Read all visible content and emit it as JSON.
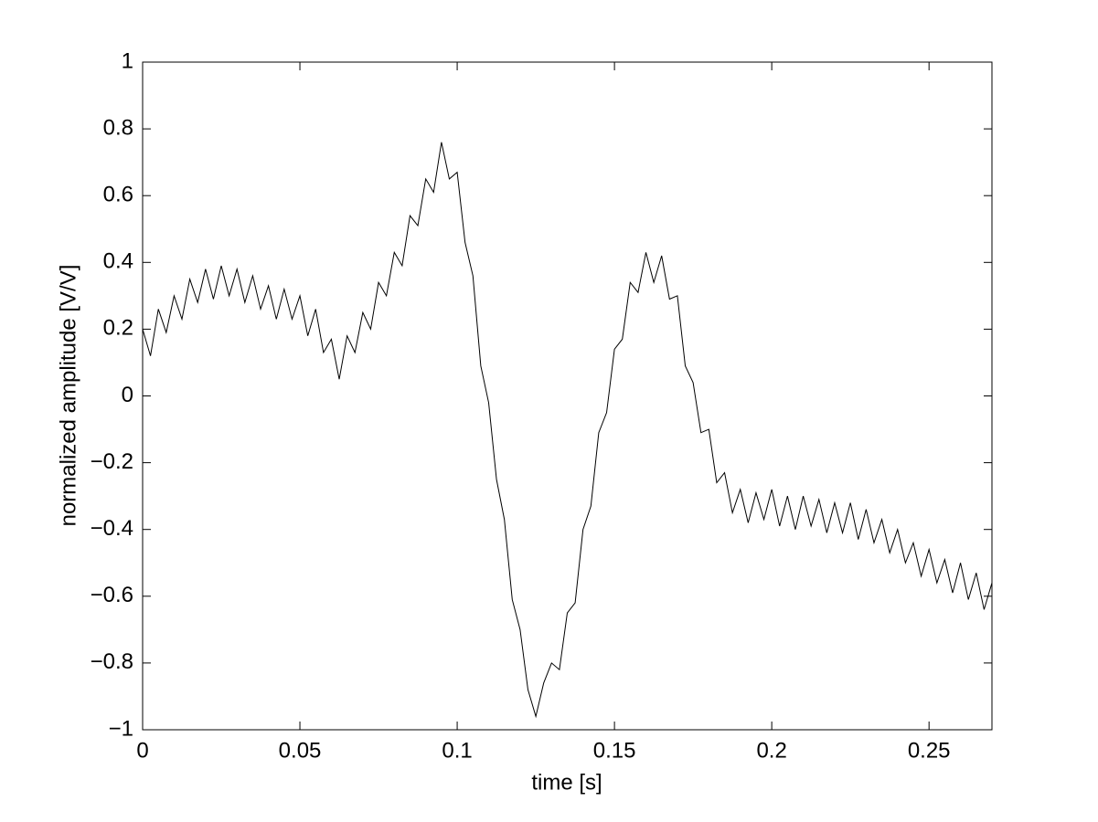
{
  "chart_data": {
    "type": "line",
    "xlabel": "time [s]",
    "ylabel": "normalized amplitude [V/V]",
    "xlim": [
      0,
      0.27
    ],
    "ylim": [
      -1,
      1
    ],
    "xticks": [
      0,
      0.05,
      0.1,
      0.15,
      0.2,
      0.25
    ],
    "yticks": [
      {
        "value": -1,
        "label": "−1"
      },
      {
        "value": -0.8,
        "label": "−0.8"
      },
      {
        "value": -0.6,
        "label": "−0.6"
      },
      {
        "value": -0.4,
        "label": "−0.4"
      },
      {
        "value": -0.2,
        "label": "−0.2"
      },
      0,
      0.2,
      0.4,
      0.6,
      0.8,
      1
    ],
    "grid": false,
    "series": [
      {
        "color": "#000000",
        "x": [
          0,
          0.0025,
          0.005,
          0.0075,
          0.01,
          0.0125,
          0.015,
          0.0175,
          0.02,
          0.0225,
          0.025,
          0.0275,
          0.03,
          0.0325,
          0.035,
          0.0375,
          0.04,
          0.0425,
          0.045,
          0.0475,
          0.05,
          0.0525,
          0.055,
          0.0575,
          0.06,
          0.0625,
          0.065,
          0.0675,
          0.07,
          0.0725,
          0.075,
          0.0775,
          0.08,
          0.0825,
          0.085,
          0.0875,
          0.09,
          0.0925,
          0.095,
          0.0975,
          0.1,
          0.1025,
          0.105,
          0.1075,
          0.11,
          0.1125,
          0.115,
          0.1175,
          0.12,
          0.1225,
          0.125,
          0.1275,
          0.13,
          0.1325,
          0.135,
          0.1375,
          0.14,
          0.1425,
          0.145,
          0.1475,
          0.15,
          0.1525,
          0.155,
          0.1575,
          0.16,
          0.1625,
          0.165,
          0.1675,
          0.17,
          0.1725,
          0.175,
          0.1775,
          0.18,
          0.1825,
          0.185,
          0.1875,
          0.19,
          0.1925,
          0.195,
          0.1975,
          0.2,
          0.2025,
          0.205,
          0.2075,
          0.21,
          0.2125,
          0.215,
          0.2175,
          0.22,
          0.2225,
          0.225,
          0.2275,
          0.23,
          0.2325,
          0.235,
          0.2375,
          0.24,
          0.2425,
          0.245,
          0.2475,
          0.25,
          0.2525,
          0.255,
          0.2575,
          0.26,
          0.2625,
          0.265,
          0.2675,
          0.27
        ],
        "values": [
          0.2,
          0.12,
          0.26,
          0.19,
          0.3,
          0.23,
          0.35,
          0.28,
          0.38,
          0.29,
          0.39,
          0.3,
          0.38,
          0.28,
          0.36,
          0.26,
          0.33,
          0.23,
          0.32,
          0.23,
          0.3,
          0.18,
          0.26,
          0.13,
          0.17,
          0.05,
          0.18,
          0.13,
          0.25,
          0.2,
          0.34,
          0.3,
          0.43,
          0.39,
          0.54,
          0.51,
          0.65,
          0.61,
          0.76,
          0.65,
          0.67,
          0.46,
          0.36,
          0.09,
          -0.02,
          -0.25,
          -0.37,
          -0.61,
          -0.7,
          -0.88,
          -0.96,
          -0.86,
          -0.8,
          -0.82,
          -0.65,
          -0.62,
          -0.4,
          -0.33,
          -0.11,
          -0.05,
          0.14,
          0.17,
          0.34,
          0.31,
          0.43,
          0.34,
          0.42,
          0.29,
          0.3,
          0.09,
          0.04,
          -0.11,
          -0.1,
          -0.26,
          -0.23,
          -0.35,
          -0.28,
          -0.38,
          -0.29,
          -0.37,
          -0.28,
          -0.39,
          -0.3,
          -0.4,
          -0.3,
          -0.39,
          -0.31,
          -0.41,
          -0.32,
          -0.41,
          -0.32,
          -0.43,
          -0.34,
          -0.44,
          -0.37,
          -0.47,
          -0.4,
          -0.5,
          -0.44,
          -0.54,
          -0.46,
          -0.56,
          -0.49,
          -0.59,
          -0.5,
          -0.61,
          -0.53,
          -0.64,
          -0.56
        ]
      }
    ]
  }
}
